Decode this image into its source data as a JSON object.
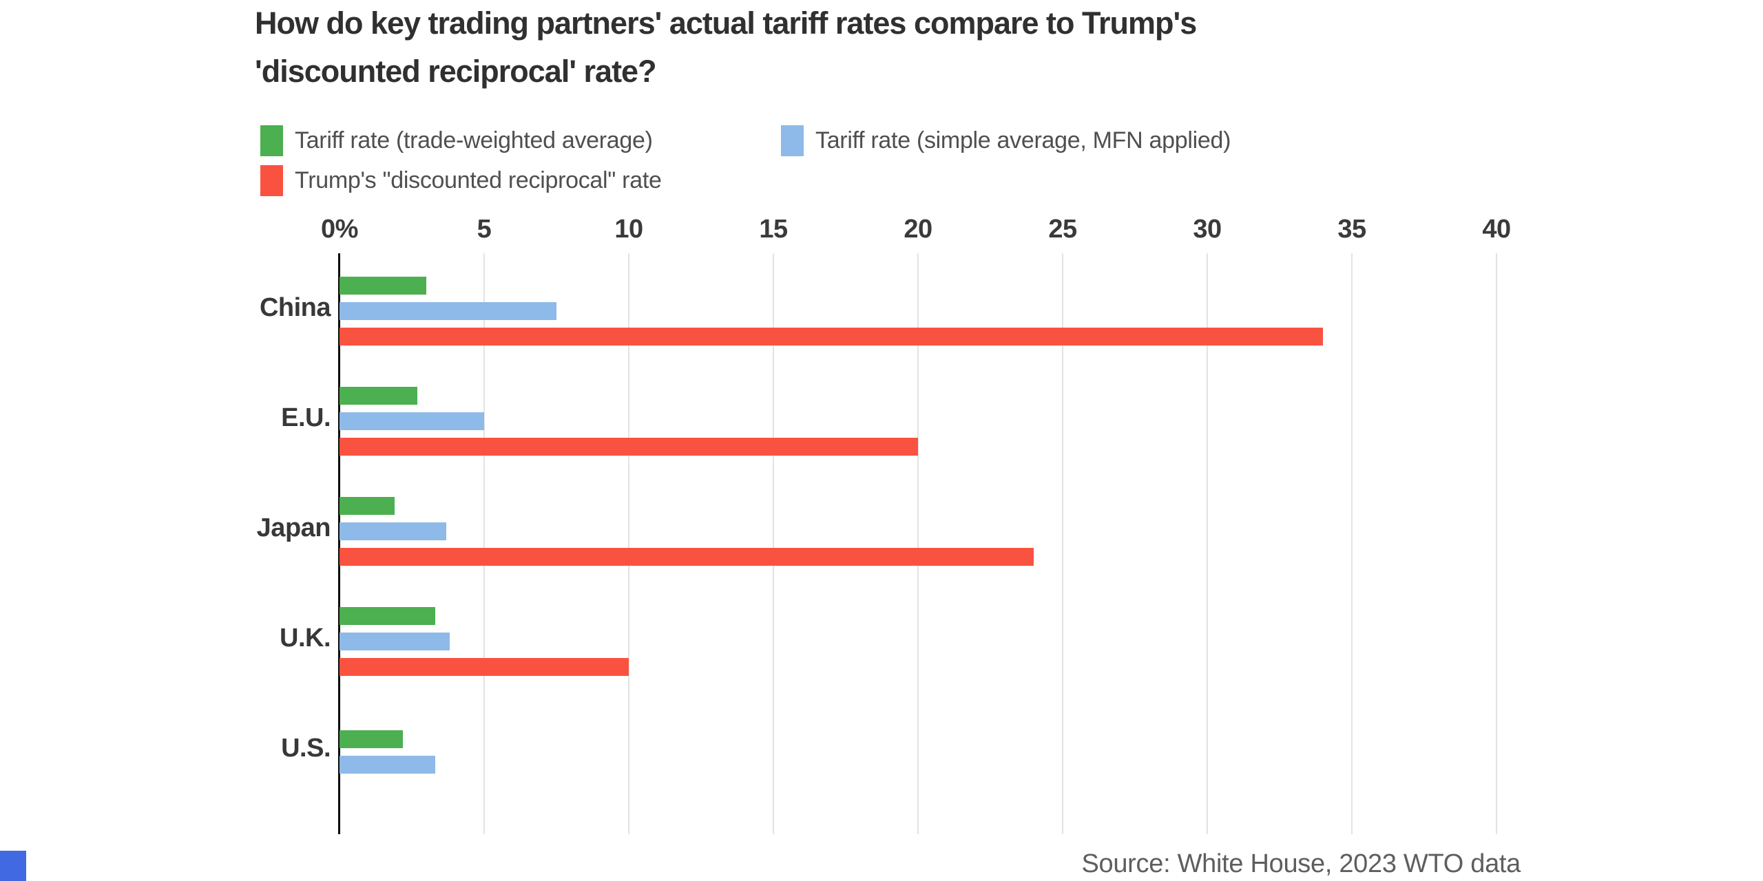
{
  "header": {
    "title_line1": "How do key trading partners' actual tariff rates compare to Trump's",
    "title_line2": "'discounted reciprocal' rate?"
  },
  "legend": {
    "items": [
      {
        "name": "trade-weighted-average",
        "label": "Tariff rate (trade-weighted average)",
        "color": "#4CAF50"
      },
      {
        "name": "simple-average-mfn",
        "label": "Tariff rate (simple average, MFN applied)",
        "color": "#8DBAE8"
      },
      {
        "name": "trump-discounted-reciprocal",
        "label": "Trump's \"discounted reciprocal\" rate",
        "color": "#FA5240"
      }
    ]
  },
  "footer": {
    "source": "Source: White House, 2023 WTO data"
  },
  "branding": {
    "logo_color": "#4169E1"
  },
  "colors": {
    "background": "#ffffff",
    "grid": "#e3e3e3",
    "axis": "#0a0a0a",
    "title_text": "#303030",
    "tick_text": "#3a3a3a",
    "category_text": "#383838",
    "legend_text": "#4f4f4f",
    "source_text": "#5e5e5e"
  },
  "chart_data": {
    "type": "bar",
    "orientation": "horizontal",
    "title": "How do key trading partners' actual tariff rates compare to Trump's 'discounted reciprocal' rate?",
    "categories": [
      "China",
      "E.U.",
      "Japan",
      "U.K.",
      "U.S."
    ],
    "series": [
      {
        "name": "Tariff rate (trade-weighted average)",
        "color": "#4CAF50",
        "values": [
          3.0,
          2.7,
          1.9,
          3.3,
          2.2
        ]
      },
      {
        "name": "Tariff rate (simple average, MFN applied)",
        "color": "#8DBAE8",
        "values": [
          7.5,
          5.0,
          3.7,
          3.8,
          3.3
        ]
      },
      {
        "name": "Trump's \"discounted reciprocal\" rate",
        "color": "#FA5240",
        "values": [
          34,
          20,
          24,
          10,
          null
        ]
      }
    ],
    "xticks": [
      0,
      5,
      10,
      15,
      20,
      25,
      30,
      35,
      40
    ],
    "xtick_labels": [
      "0%",
      "5",
      "10",
      "15",
      "20",
      "25",
      "30",
      "35",
      "40"
    ],
    "xlabel": "",
    "ylabel": "",
    "xlim": [
      0,
      40
    ],
    "grid": "vertical",
    "legend_position": "top",
    "source": "Source: White House, 2023 WTO data"
  }
}
